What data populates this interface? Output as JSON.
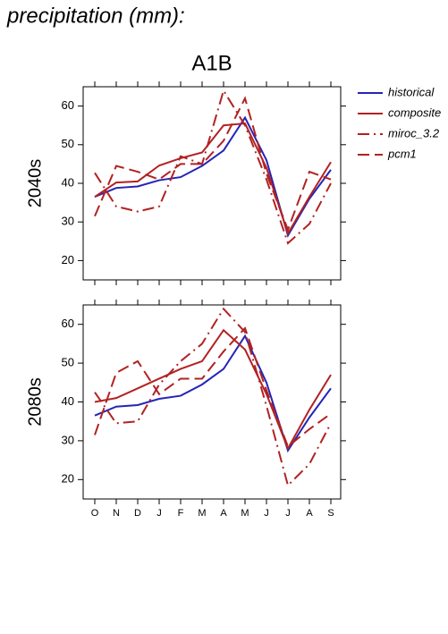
{
  "title": "precipitation (mm):",
  "chart_data": [
    {
      "type": "line",
      "title": "A1B",
      "ylabel": "2040s",
      "categories": [
        null,
        null,
        null,
        null,
        null,
        null,
        null,
        null,
        null,
        null,
        null,
        null
      ],
      "ylim": [
        15,
        65
      ],
      "yticks": [
        20,
        30,
        40,
        50,
        60
      ],
      "series": [
        {
          "name": "historical",
          "color": "#2424b8",
          "linestyle": "solid",
          "values": [
            36.5,
            38.8,
            39.2,
            40.8,
            41.6,
            44.5,
            48.5,
            57,
            46,
            26.5,
            36,
            43.5
          ]
        },
        {
          "name": "composite",
          "color": "#b22222",
          "linestyle": "solid",
          "values": [
            36.5,
            40.2,
            40.5,
            44.6,
            46.5,
            48,
            55,
            55.5,
            44,
            27,
            36.5,
            45.5
          ]
        },
        {
          "name": "miroc_3.2",
          "color": "#b22222",
          "linestyle": "dashdot",
          "values": [
            42.7,
            34,
            32.7,
            34,
            47,
            45,
            64,
            55,
            41,
            24.5,
            29.5,
            40
          ]
        },
        {
          "name": "pcm1",
          "color": "#b22222",
          "linestyle": "dashed",
          "values": [
            31.5,
            44.5,
            43,
            41,
            45,
            45,
            51,
            62,
            42.5,
            28,
            43,
            41
          ]
        }
      ]
    },
    {
      "type": "line",
      "ylabel": "2080s",
      "categories": [
        "O",
        "N",
        "D",
        "J",
        "F",
        "M",
        "A",
        "M",
        "J",
        "J",
        "A",
        "S"
      ],
      "ylim": [
        15,
        65
      ],
      "yticks": [
        20,
        30,
        40,
        50,
        60
      ],
      "series": [
        {
          "name": "historical",
          "color": "#2424b8",
          "linestyle": "solid",
          "values": [
            36.5,
            38.8,
            39.2,
            40.8,
            41.6,
            44.5,
            48.5,
            57,
            45,
            27.5,
            36,
            43.5
          ]
        },
        {
          "name": "composite",
          "color": "#b22222",
          "linestyle": "solid",
          "values": [
            40,
            41,
            43.5,
            46,
            48.5,
            50.5,
            58.5,
            53.5,
            42,
            28,
            38,
            47
          ]
        },
        {
          "name": "miroc_3.2",
          "color": "#b22222",
          "linestyle": "dashdot",
          "values": [
            42.5,
            34.5,
            35,
            44.5,
            50.5,
            55,
            64,
            58,
            39,
            18.5,
            24,
            34.5
          ]
        },
        {
          "name": "pcm1",
          "color": "#b22222",
          "linestyle": "dashed",
          "values": [
            31.5,
            47.5,
            50.5,
            42,
            46,
            46,
            53,
            59,
            43,
            28.5,
            33,
            37
          ]
        }
      ]
    }
  ]
}
